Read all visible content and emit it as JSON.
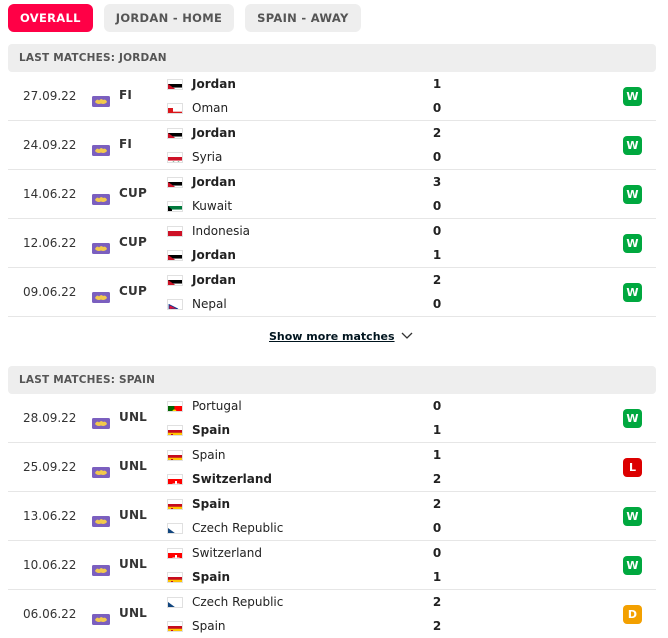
{
  "tabs": [
    {
      "label": "OVERALL",
      "active": true
    },
    {
      "label": "JORDAN - HOME",
      "active": false
    },
    {
      "label": "SPAIN - AWAY",
      "active": false
    }
  ],
  "sections": [
    {
      "title": "LAST MATCHES: JORDAN",
      "matches": [
        {
          "date": "27.09.22",
          "comp": "FI",
          "team1": {
            "name": "Jordan",
            "flag": "jordan",
            "bold": true
          },
          "team2": {
            "name": "Oman",
            "flag": "oman",
            "bold": false
          },
          "score1": "1",
          "score2": "0",
          "result": "W"
        },
        {
          "date": "24.09.22",
          "comp": "FI",
          "team1": {
            "name": "Jordan",
            "flag": "jordan",
            "bold": true
          },
          "team2": {
            "name": "Syria",
            "flag": "syria",
            "bold": false
          },
          "score1": "2",
          "score2": "0",
          "result": "W"
        },
        {
          "date": "14.06.22",
          "comp": "CUP",
          "team1": {
            "name": "Jordan",
            "flag": "jordan",
            "bold": true
          },
          "team2": {
            "name": "Kuwait",
            "flag": "kuwait",
            "bold": false
          },
          "score1": "3",
          "score2": "0",
          "result": "W"
        },
        {
          "date": "12.06.22",
          "comp": "CUP",
          "team1": {
            "name": "Indonesia",
            "flag": "indonesia",
            "bold": false
          },
          "team2": {
            "name": "Jordan",
            "flag": "jordan",
            "bold": true
          },
          "score1": "0",
          "score2": "1",
          "result": "W"
        },
        {
          "date": "09.06.22",
          "comp": "CUP",
          "team1": {
            "name": "Jordan",
            "flag": "jordan",
            "bold": true
          },
          "team2": {
            "name": "Nepal",
            "flag": "nepal",
            "bold": false
          },
          "score1": "2",
          "score2": "0",
          "result": "W"
        }
      ]
    },
    {
      "title": "LAST MATCHES: SPAIN",
      "matches": [
        {
          "date": "28.09.22",
          "comp": "UNL",
          "team1": {
            "name": "Portugal",
            "flag": "portugal",
            "bold": false
          },
          "team2": {
            "name": "Spain",
            "flag": "spain",
            "bold": true
          },
          "score1": "0",
          "score2": "1",
          "result": "W"
        },
        {
          "date": "25.09.22",
          "comp": "UNL",
          "team1": {
            "name": "Spain",
            "flag": "spain",
            "bold": false
          },
          "team2": {
            "name": "Switzerland",
            "flag": "switzerland",
            "bold": true
          },
          "score1": "1",
          "score2": "2",
          "result": "L"
        },
        {
          "date": "13.06.22",
          "comp": "UNL",
          "team1": {
            "name": "Spain",
            "flag": "spain",
            "bold": true
          },
          "team2": {
            "name": "Czech Republic",
            "flag": "czech",
            "bold": false
          },
          "score1": "2",
          "score2": "0",
          "result": "W"
        },
        {
          "date": "10.06.22",
          "comp": "UNL",
          "team1": {
            "name": "Switzerland",
            "flag": "switzerland",
            "bold": false
          },
          "team2": {
            "name": "Spain",
            "flag": "spain",
            "bold": true
          },
          "score1": "0",
          "score2": "1",
          "result": "W"
        },
        {
          "date": "06.06.22",
          "comp": "UNL",
          "team1": {
            "name": "Czech Republic",
            "flag": "czech",
            "bold": false
          },
          "team2": {
            "name": "Spain",
            "flag": "spain",
            "bold": false
          },
          "score1": "2",
          "score2": "2",
          "result": "D"
        }
      ]
    }
  ],
  "show_more": {
    "label": "Show more matches",
    "icon": "chevron-down-icon"
  },
  "colors": {
    "accent": "#ff0046",
    "win": "#00a83f",
    "loss": "#dc0000",
    "draw": "#f3a000",
    "competition_icon": "#7b5fbf"
  }
}
